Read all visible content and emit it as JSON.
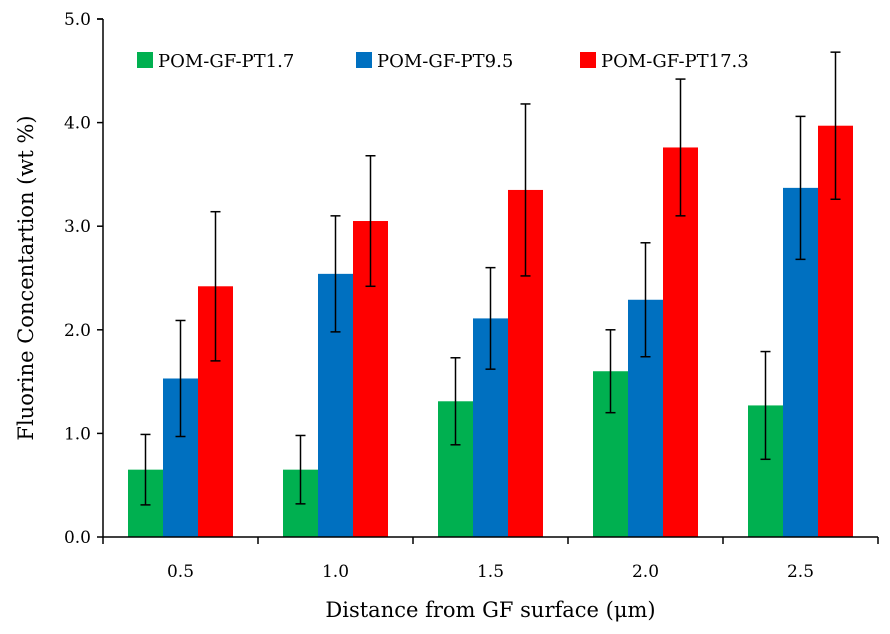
{
  "chart_data": {
    "type": "bar",
    "title": "",
    "xlabel": "Distance from GF surface (μm)",
    "ylabel": "Fluorine Concentartion (wt %)",
    "categories": [
      "0.5",
      "1.0",
      "1.5",
      "2.0",
      "2.5"
    ],
    "ylim": [
      0,
      5
    ],
    "yticks": [
      "0.0",
      "1.0",
      "2.0",
      "3.0",
      "4.0",
      "5.0"
    ],
    "grid": false,
    "legend_position": "top",
    "series": [
      {
        "name": "POM-GF-PT1.7",
        "color": "#00b050",
        "values": [
          0.65,
          0.65,
          1.31,
          1.6,
          1.27
        ],
        "errors": [
          0.34,
          0.33,
          0.42,
          0.4,
          0.52
        ]
      },
      {
        "name": "POM-GF-PT9.5",
        "color": "#0070c0",
        "values": [
          1.53,
          2.54,
          2.11,
          2.29,
          3.37
        ],
        "errors": [
          0.56,
          0.56,
          0.49,
          0.55,
          0.69
        ]
      },
      {
        "name": "POM-GF-PT17.3",
        "color": "#ff0000",
        "values": [
          2.42,
          3.05,
          3.35,
          3.76,
          3.97
        ],
        "errors": [
          0.72,
          0.63,
          0.83,
          0.66,
          0.71
        ]
      }
    ]
  }
}
